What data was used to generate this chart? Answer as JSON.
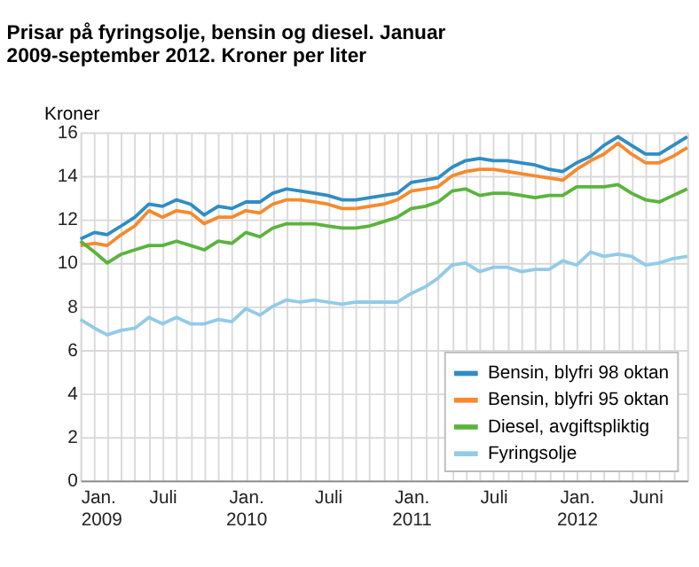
{
  "chart_data": {
    "type": "line",
    "title": "Prisar på fyringsolje, bensin og diesel. Januar 2009-september 2012. Kroner per liter",
    "ylabel": "Kroner",
    "x": [
      "2009-01",
      "2009-02",
      "2009-03",
      "2009-04",
      "2009-05",
      "2009-06",
      "2009-07",
      "2009-08",
      "2009-09",
      "2009-10",
      "2009-11",
      "2009-12",
      "2010-01",
      "2010-02",
      "2010-03",
      "2010-04",
      "2010-05",
      "2010-06",
      "2010-07",
      "2010-08",
      "2010-09",
      "2010-10",
      "2010-11",
      "2010-12",
      "2011-01",
      "2011-02",
      "2011-03",
      "2011-04",
      "2011-05",
      "2011-06",
      "2011-07",
      "2011-08",
      "2011-09",
      "2011-10",
      "2011-11",
      "2011-12",
      "2012-01",
      "2012-02",
      "2012-03",
      "2012-04",
      "2012-05",
      "2012-06",
      "2012-07",
      "2012-08",
      "2012-09"
    ],
    "series": [
      {
        "name": "Bensin, blyfri 98 oktan",
        "color": "#2f8dc4",
        "values": [
          11.1,
          11.4,
          11.3,
          11.7,
          12.1,
          12.7,
          12.6,
          12.9,
          12.7,
          12.2,
          12.6,
          12.5,
          12.8,
          12.8,
          13.2,
          13.4,
          13.3,
          13.2,
          13.1,
          12.9,
          12.9,
          13.0,
          13.1,
          13.2,
          13.7,
          13.8,
          13.9,
          14.4,
          14.7,
          14.8,
          14.7,
          14.7,
          14.6,
          14.5,
          14.3,
          14.2,
          14.6,
          14.9,
          15.4,
          15.8,
          15.4,
          15.0,
          15.0,
          15.4,
          15.8
        ]
      },
      {
        "name": "Bensin, blyfri 95 oktan",
        "color": "#f58a2e",
        "values": [
          10.8,
          10.9,
          10.8,
          11.3,
          11.7,
          12.4,
          12.1,
          12.4,
          12.3,
          11.8,
          12.1,
          12.1,
          12.4,
          12.3,
          12.7,
          12.9,
          12.9,
          12.8,
          12.7,
          12.5,
          12.5,
          12.6,
          12.7,
          12.9,
          13.3,
          13.4,
          13.5,
          14.0,
          14.2,
          14.3,
          14.3,
          14.2,
          14.1,
          14.0,
          13.9,
          13.8,
          14.3,
          14.7,
          15.0,
          15.5,
          15.0,
          14.6,
          14.6,
          14.9,
          15.3
        ]
      },
      {
        "name": "Diesel, avgiftspliktig",
        "color": "#5ab43c",
        "values": [
          11.0,
          10.5,
          10.0,
          10.4,
          10.6,
          10.8,
          10.8,
          11.0,
          10.8,
          10.6,
          11.0,
          10.9,
          11.4,
          11.2,
          11.6,
          11.8,
          11.8,
          11.8,
          11.7,
          11.6,
          11.6,
          11.7,
          11.9,
          12.1,
          12.5,
          12.6,
          12.8,
          13.3,
          13.4,
          13.1,
          13.2,
          13.2,
          13.1,
          13.0,
          13.1,
          13.1,
          13.5,
          13.5,
          13.5,
          13.6,
          13.2,
          12.9,
          12.8,
          13.1,
          13.4
        ]
      },
      {
        "name": "Fyringsolje",
        "color": "#92cbe8",
        "values": [
          7.4,
          7.0,
          6.7,
          6.9,
          7.0,
          7.5,
          7.2,
          7.5,
          7.2,
          7.2,
          7.4,
          7.3,
          7.9,
          7.6,
          8.0,
          8.3,
          8.2,
          8.3,
          8.2,
          8.1,
          8.2,
          8.2,
          8.2,
          8.2,
          8.6,
          8.9,
          9.3,
          9.9,
          10.0,
          9.6,
          9.8,
          9.8,
          9.6,
          9.7,
          9.7,
          10.1,
          9.9,
          10.5,
          10.3,
          10.4,
          10.3,
          9.9,
          10.0,
          10.2,
          10.3
        ]
      }
    ],
    "ylim": [
      0,
      16
    ],
    "yticks": [
      0,
      2,
      4,
      6,
      8,
      10,
      12,
      14,
      16
    ],
    "xlim": [
      "2009-01",
      "2012-09"
    ],
    "xticks": [
      {
        "value": "2009-01",
        "label": "Jan. 2009"
      },
      {
        "value": "2009-02",
        "label": null
      },
      {
        "value": "2009-03",
        "label": null
      },
      {
        "value": "2009-04",
        "label": null
      },
      {
        "value": "2009-05",
        "label": null
      },
      {
        "value": "2009-06",
        "label": null
      },
      {
        "value": "2009-07",
        "label": "Juli"
      },
      {
        "value": "2009-08",
        "label": null
      },
      {
        "value": "2009-09",
        "label": null
      },
      {
        "value": "2009-10",
        "label": null
      },
      {
        "value": "2009-11",
        "label": null
      },
      {
        "value": "2009-12",
        "label": null
      },
      {
        "value": "2010-01",
        "label": "Jan. 2010"
      },
      {
        "value": "2010-02",
        "label": null
      },
      {
        "value": "2010-03",
        "label": null
      },
      {
        "value": "2010-04",
        "label": null
      },
      {
        "value": "2010-05",
        "label": null
      },
      {
        "value": "2010-06",
        "label": null
      },
      {
        "value": "2010-07",
        "label": "Juli"
      },
      {
        "value": "2010-08",
        "label": null
      },
      {
        "value": "2010-09",
        "label": null
      },
      {
        "value": "2010-10",
        "label": null
      },
      {
        "value": "2010-11",
        "label": null
      },
      {
        "value": "2010-12",
        "label": null
      },
      {
        "value": "2011-01",
        "label": "Jan. 2011"
      },
      {
        "value": "2011-02",
        "label": null
      },
      {
        "value": "2011-03",
        "label": null
      },
      {
        "value": "2011-04",
        "label": null
      },
      {
        "value": "2011-05",
        "label": null
      },
      {
        "value": "2011-06",
        "label": null
      },
      {
        "value": "2011-07",
        "label": "Juli"
      },
      {
        "value": "2011-08",
        "label": null
      },
      {
        "value": "2011-09",
        "label": null
      },
      {
        "value": "2011-10",
        "label": null
      },
      {
        "value": "2011-11",
        "label": null
      },
      {
        "value": "2011-12",
        "label": null
      },
      {
        "value": "2012-01",
        "label": "Jan. 2012"
      },
      {
        "value": "2012-02",
        "label": null
      },
      {
        "value": "2012-03",
        "label": null
      },
      {
        "value": "2012-04",
        "label": null
      },
      {
        "value": "2012-05",
        "label": null
      },
      {
        "value": "2012-06",
        "label": "Juni"
      },
      {
        "value": "2012-07",
        "label": null
      },
      {
        "value": "2012-08",
        "label": null
      },
      {
        "value": "2012-09",
        "label": null
      }
    ],
    "grid": true,
    "legend": "bottom right",
    "marker": "none",
    "line_style": "solid"
  }
}
